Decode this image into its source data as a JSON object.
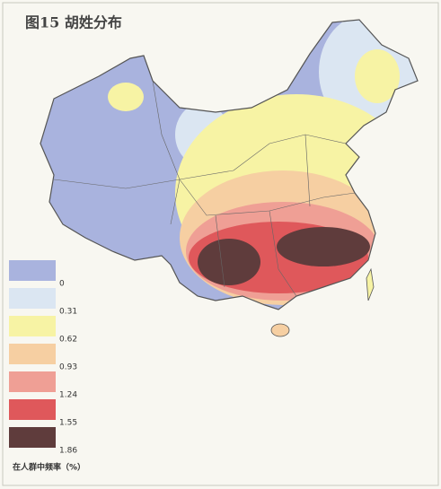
{
  "title": "图15  胡姓分布",
  "legend": {
    "items": [
      {
        "label": "0",
        "color": "#a9b3de"
      },
      {
        "label": "0.31",
        "color": "#dbe6f2"
      },
      {
        "label": "0.62",
        "color": "#f7f3a4"
      },
      {
        "label": "0.93",
        "color": "#f6cfa2"
      },
      {
        "label": "1.24",
        "color": "#ef9f95"
      },
      {
        "label": "1.55",
        "color": "#df585b"
      },
      {
        "label": "1.86",
        "color": "#5f3c3c"
      }
    ],
    "caption": "在人群中频率（%）"
  }
}
